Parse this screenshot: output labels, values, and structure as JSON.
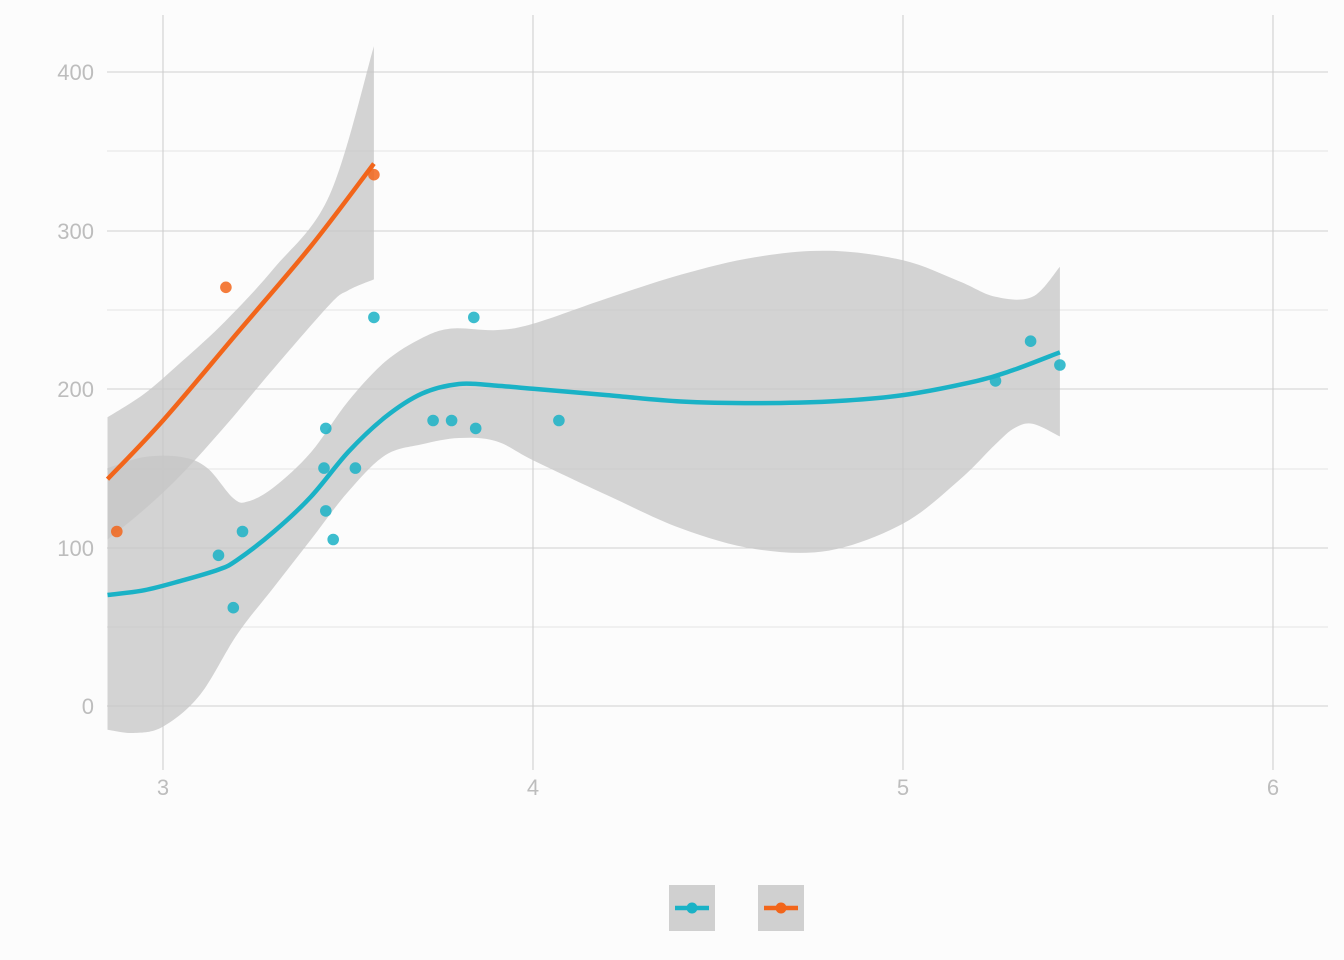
{
  "chart_data": {
    "type": "scatter",
    "title": "",
    "xlabel": "",
    "ylabel": "",
    "xlim": [
      2.85,
      6.15
    ],
    "ylim": [
      -45,
      435
    ],
    "x_ticks": [
      3,
      4,
      5,
      6
    ],
    "y_ticks": [
      0,
      100,
      200,
      300,
      400
    ],
    "x_tick_labels": [
      "3",
      "4",
      "5",
      "6"
    ],
    "y_tick_labels": [
      "0",
      "100",
      "200",
      "300",
      "400"
    ],
    "grid": true,
    "legend": "bottom-center",
    "colors": {
      "series1": "#1ab2c6",
      "series2": "#f2651a",
      "ribbon": "#c7c7c7",
      "legend_key": "#d0d0d0"
    },
    "series": [
      {
        "color": "#1ab2c6",
        "points": [
          [
            3.15,
            95
          ],
          [
            3.19,
            62
          ],
          [
            3.215,
            110
          ],
          [
            3.435,
            150
          ],
          [
            3.44,
            123
          ],
          [
            3.44,
            175
          ],
          [
            3.46,
            105
          ],
          [
            3.52,
            150
          ],
          [
            3.57,
            245
          ],
          [
            3.73,
            180
          ],
          [
            3.78,
            180
          ],
          [
            3.84,
            245
          ],
          [
            3.845,
            175
          ],
          [
            4.07,
            180
          ],
          [
            5.25,
            205
          ],
          [
            5.345,
            230
          ],
          [
            5.424,
            215
          ]
        ],
        "smooth": [
          [
            2.85,
            70
          ],
          [
            2.95,
            73
          ],
          [
            3.05,
            79
          ],
          [
            3.15,
            86
          ],
          [
            3.2,
            92
          ],
          [
            3.3,
            110
          ],
          [
            3.4,
            132
          ],
          [
            3.5,
            160
          ],
          [
            3.6,
            182
          ],
          [
            3.7,
            197
          ],
          [
            3.8,
            203
          ],
          [
            3.9,
            202
          ],
          [
            4.0,
            200
          ],
          [
            4.2,
            196
          ],
          [
            4.4,
            192
          ],
          [
            4.6,
            191
          ],
          [
            4.8,
            192
          ],
          [
            5.0,
            196
          ],
          [
            5.2,
            205
          ],
          [
            5.3,
            212
          ],
          [
            5.424,
            223
          ]
        ],
        "ribbon_upper": [
          [
            2.85,
            150
          ],
          [
            2.95,
            157
          ],
          [
            3.05,
            157
          ],
          [
            3.12,
            150
          ],
          [
            3.19,
            131
          ],
          [
            3.23,
            129
          ],
          [
            3.3,
            138
          ],
          [
            3.4,
            160
          ],
          [
            3.5,
            192
          ],
          [
            3.6,
            217
          ],
          [
            3.7,
            232
          ],
          [
            3.78,
            238
          ],
          [
            3.9,
            237
          ],
          [
            4.0,
            241
          ],
          [
            4.2,
            257
          ],
          [
            4.4,
            272
          ],
          [
            4.6,
            283
          ],
          [
            4.8,
            287
          ],
          [
            5.0,
            281
          ],
          [
            5.15,
            268
          ],
          [
            5.25,
            258
          ],
          [
            5.35,
            258
          ],
          [
            5.424,
            277
          ]
        ],
        "ribbon_lower": [
          [
            2.85,
            -15
          ],
          [
            2.92,
            -17
          ],
          [
            3.0,
            -13
          ],
          [
            3.1,
            7
          ],
          [
            3.2,
            45
          ],
          [
            3.3,
            75
          ],
          [
            3.4,
            105
          ],
          [
            3.5,
            135
          ],
          [
            3.6,
            158
          ],
          [
            3.7,
            165
          ],
          [
            3.8,
            169
          ],
          [
            3.9,
            167
          ],
          [
            4.0,
            155
          ],
          [
            4.2,
            133
          ],
          [
            4.4,
            112
          ],
          [
            4.6,
            99
          ],
          [
            4.8,
            98
          ],
          [
            5.0,
            115
          ],
          [
            5.15,
            142
          ],
          [
            5.25,
            165
          ],
          [
            5.3,
            175
          ],
          [
            5.35,
            178
          ],
          [
            5.424,
            170
          ]
        ]
      },
      {
        "color": "#f2651a",
        "points": [
          [
            2.875,
            110
          ],
          [
            3.17,
            264
          ],
          [
            3.57,
            335
          ]
        ],
        "smooth": [
          [
            2.85,
            143
          ],
          [
            3.0,
            180
          ],
          [
            3.2,
            235
          ],
          [
            3.4,
            290
          ],
          [
            3.57,
            342
          ]
        ],
        "ribbon_upper": [
          [
            2.85,
            182
          ],
          [
            2.95,
            197
          ],
          [
            3.05,
            217
          ],
          [
            3.17,
            243
          ],
          [
            3.3,
            276
          ],
          [
            3.45,
            322
          ],
          [
            3.57,
            416
          ]
        ],
        "ribbon_lower": [
          [
            2.85,
            105
          ],
          [
            2.95,
            124
          ],
          [
            3.05,
            146
          ],
          [
            3.17,
            177
          ],
          [
            3.3,
            213
          ],
          [
            3.45,
            253
          ],
          [
            3.5,
            262
          ],
          [
            3.57,
            269
          ]
        ]
      }
    ]
  }
}
